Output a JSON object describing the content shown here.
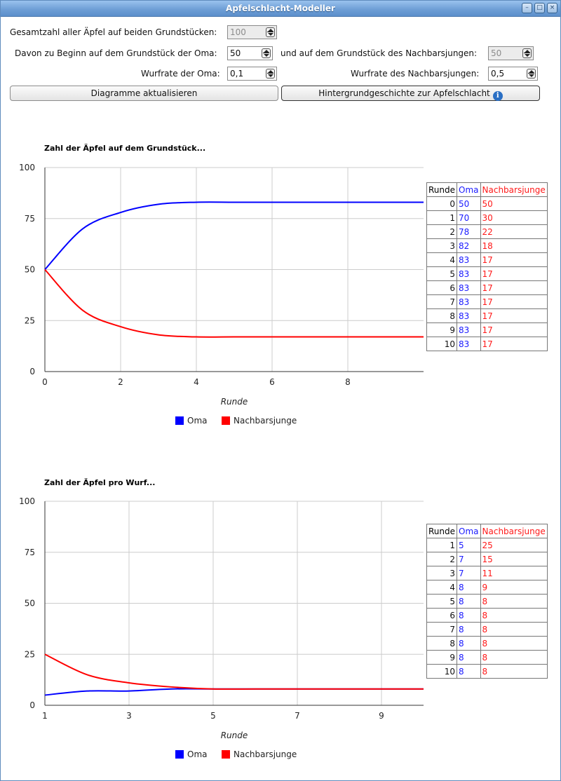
{
  "window": {
    "title": "Apfelschlacht-Modeller"
  },
  "controls": {
    "total_label": "Gesamtzahl aller Äpfel auf beiden Grundstücken:",
    "total_value": "100",
    "oma_start_label": "Davon zu Beginn auf dem Grundstück der Oma:",
    "oma_start_value": "50",
    "neighbor_start_label": "und auf dem Grundstück des Nachbarsjungen:",
    "neighbor_start_value": "50",
    "oma_rate_label": "Wurfrate der Oma:",
    "oma_rate_value": "0,1",
    "neighbor_rate_label": "Wurfrate des Nachbarsjungen:",
    "neighbor_rate_value": "0,5",
    "update_button": "Diagramme aktualisieren",
    "story_button": "Hintergrundgeschichte zur Apfelschlacht"
  },
  "colors": {
    "oma": "#0000ff",
    "nachbar": "#ff0000",
    "grid": "#cccccc"
  },
  "chart_data": [
    {
      "type": "line",
      "title": "Zahl der Äpfel auf dem Grundstück...",
      "xlabel": "Runde",
      "ylabel": "",
      "xlim": [
        0,
        10
      ],
      "ylim": [
        0,
        100
      ],
      "xticks": [
        0,
        2,
        4,
        6,
        8
      ],
      "yticks": [
        0,
        25,
        50,
        75,
        100
      ],
      "x": [
        0,
        1,
        2,
        3,
        4,
        5,
        6,
        7,
        8,
        9,
        10
      ],
      "series": [
        {
          "name": "Oma",
          "values": [
            50,
            70,
            78,
            82,
            83,
            83,
            83,
            83,
            83,
            83,
            83
          ]
        },
        {
          "name": "Nachbarsjunge",
          "values": [
            50,
            30,
            22,
            18,
            17,
            17,
            17,
            17,
            17,
            17,
            17
          ]
        }
      ],
      "legend": "bottom",
      "grid": true
    },
    {
      "type": "line",
      "title": "Zahl der Äpfel pro Wurf...",
      "xlabel": "Runde",
      "ylabel": "",
      "xlim": [
        1,
        10
      ],
      "ylim": [
        0,
        100
      ],
      "xticks": [
        1,
        3,
        5,
        7,
        9
      ],
      "yticks": [
        0,
        25,
        50,
        75,
        100
      ],
      "x": [
        1,
        2,
        3,
        4,
        5,
        6,
        7,
        8,
        9,
        10
      ],
      "series": [
        {
          "name": "Oma",
          "values": [
            5,
            7,
            7,
            8,
            8,
            8,
            8,
            8,
            8,
            8
          ]
        },
        {
          "name": "Nachbarsjunge",
          "values": [
            25,
            15,
            11,
            9,
            8,
            8,
            8,
            8,
            8,
            8
          ]
        }
      ],
      "legend": "bottom",
      "grid": true
    }
  ],
  "tables": [
    {
      "headers": [
        "Runde",
        "Oma",
        "Nachbarsjunge"
      ],
      "rows": [
        [
          "0",
          "50",
          "50"
        ],
        [
          "1",
          "70",
          "30"
        ],
        [
          "2",
          "78",
          "22"
        ],
        [
          "3",
          "82",
          "18"
        ],
        [
          "4",
          "83",
          "17"
        ],
        [
          "5",
          "83",
          "17"
        ],
        [
          "6",
          "83",
          "17"
        ],
        [
          "7",
          "83",
          "17"
        ],
        [
          "8",
          "83",
          "17"
        ],
        [
          "9",
          "83",
          "17"
        ],
        [
          "10",
          "83",
          "17"
        ]
      ]
    },
    {
      "headers": [
        "Runde",
        "Oma",
        "Nachbarsjunge"
      ],
      "rows": [
        [
          "1",
          "5",
          "25"
        ],
        [
          "2",
          "7",
          "15"
        ],
        [
          "3",
          "7",
          "11"
        ],
        [
          "4",
          "8",
          "9"
        ],
        [
          "5",
          "8",
          "8"
        ],
        [
          "6",
          "8",
          "8"
        ],
        [
          "7",
          "8",
          "8"
        ],
        [
          "8",
          "8",
          "8"
        ],
        [
          "9",
          "8",
          "8"
        ],
        [
          "10",
          "8",
          "8"
        ]
      ]
    }
  ]
}
